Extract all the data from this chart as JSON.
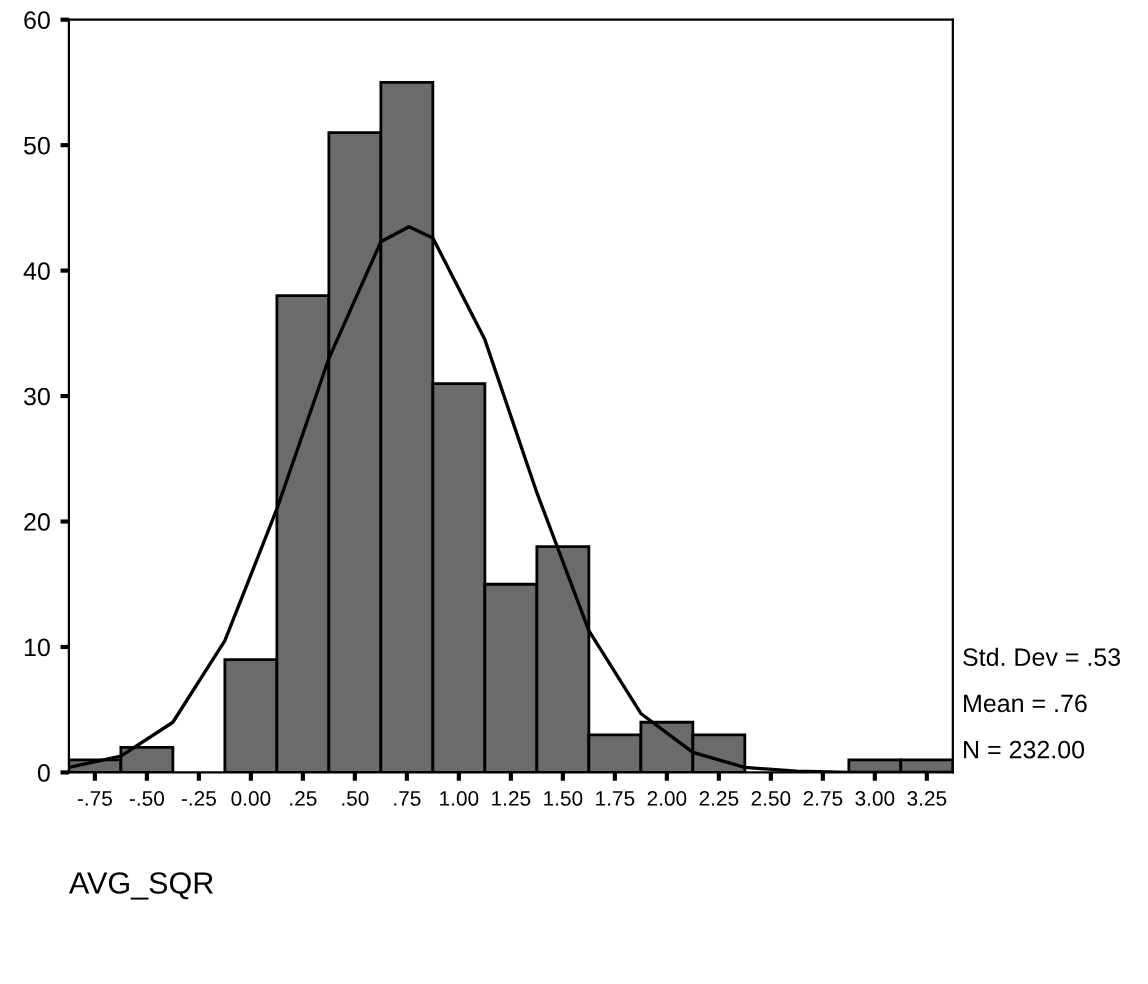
{
  "chart_data": {
    "type": "histogram",
    "xlabel": "AVG_SQR",
    "bins": [
      -0.875,
      -0.625,
      -0.375,
      -0.125,
      0.125,
      0.375,
      0.625,
      0.875,
      1.125,
      1.375,
      1.625,
      1.875,
      2.125,
      2.375,
      2.625,
      2.875,
      3.125,
      3.375
    ],
    "values": [
      1,
      2,
      0,
      9,
      38,
      51,
      55,
      31,
      15,
      18,
      3,
      4,
      3,
      0,
      0,
      1,
      1
    ],
    "color": "#6b6b6b",
    "series": [
      {
        "type": "line",
        "color": "#000000",
        "x": [
          -0.875,
          -0.625,
          -0.375,
          -0.125,
          0.125,
          0.375,
          0.625,
          0.76,
          0.875,
          1.125,
          1.375,
          1.625,
          1.875,
          2.125,
          2.375,
          2.625,
          2.875,
          3.375
        ],
        "values": [
          0.4,
          1.3,
          4,
          10.5,
          21,
          33,
          42.3,
          43.5,
          42.6,
          34.5,
          22.3,
          11.3,
          4.7,
          1.6,
          0.4,
          0.1,
          0,
          0
        ]
      }
    ],
    "xlim": [
      -0.875,
      3.375
    ],
    "xticks": [
      {
        "value": -0.75,
        "label": "-.75"
      },
      {
        "value": -0.5,
        "label": "-.50"
      },
      {
        "value": -0.25,
        "label": "-.25"
      },
      {
        "value": 0,
        "label": "0.00"
      },
      {
        "value": 0.25,
        "label": ".25"
      },
      {
        "value": 0.5,
        "label": ".50"
      },
      {
        "value": 0.75,
        "label": ".75"
      },
      {
        "value": 1,
        "label": "1.00"
      },
      {
        "value": 1.25,
        "label": "1.25"
      },
      {
        "value": 1.5,
        "label": "1.50"
      },
      {
        "value": 1.75,
        "label": "1.75"
      },
      {
        "value": 2,
        "label": "2.00"
      },
      {
        "value": 2.25,
        "label": "2.25"
      },
      {
        "value": 2.5,
        "label": "2.50"
      },
      {
        "value": 2.75,
        "label": "2.75"
      },
      {
        "value": 3,
        "label": "3.00"
      },
      {
        "value": 3.25,
        "label": "3.25"
      }
    ],
    "ylim": [
      0,
      60
    ],
    "yticks": [
      0,
      10,
      20,
      30,
      40,
      50,
      60
    ],
    "grid": false,
    "legend": false,
    "annotations": [
      "Std. Dev = .53",
      "Mean = .76",
      "N = 232.00"
    ]
  }
}
